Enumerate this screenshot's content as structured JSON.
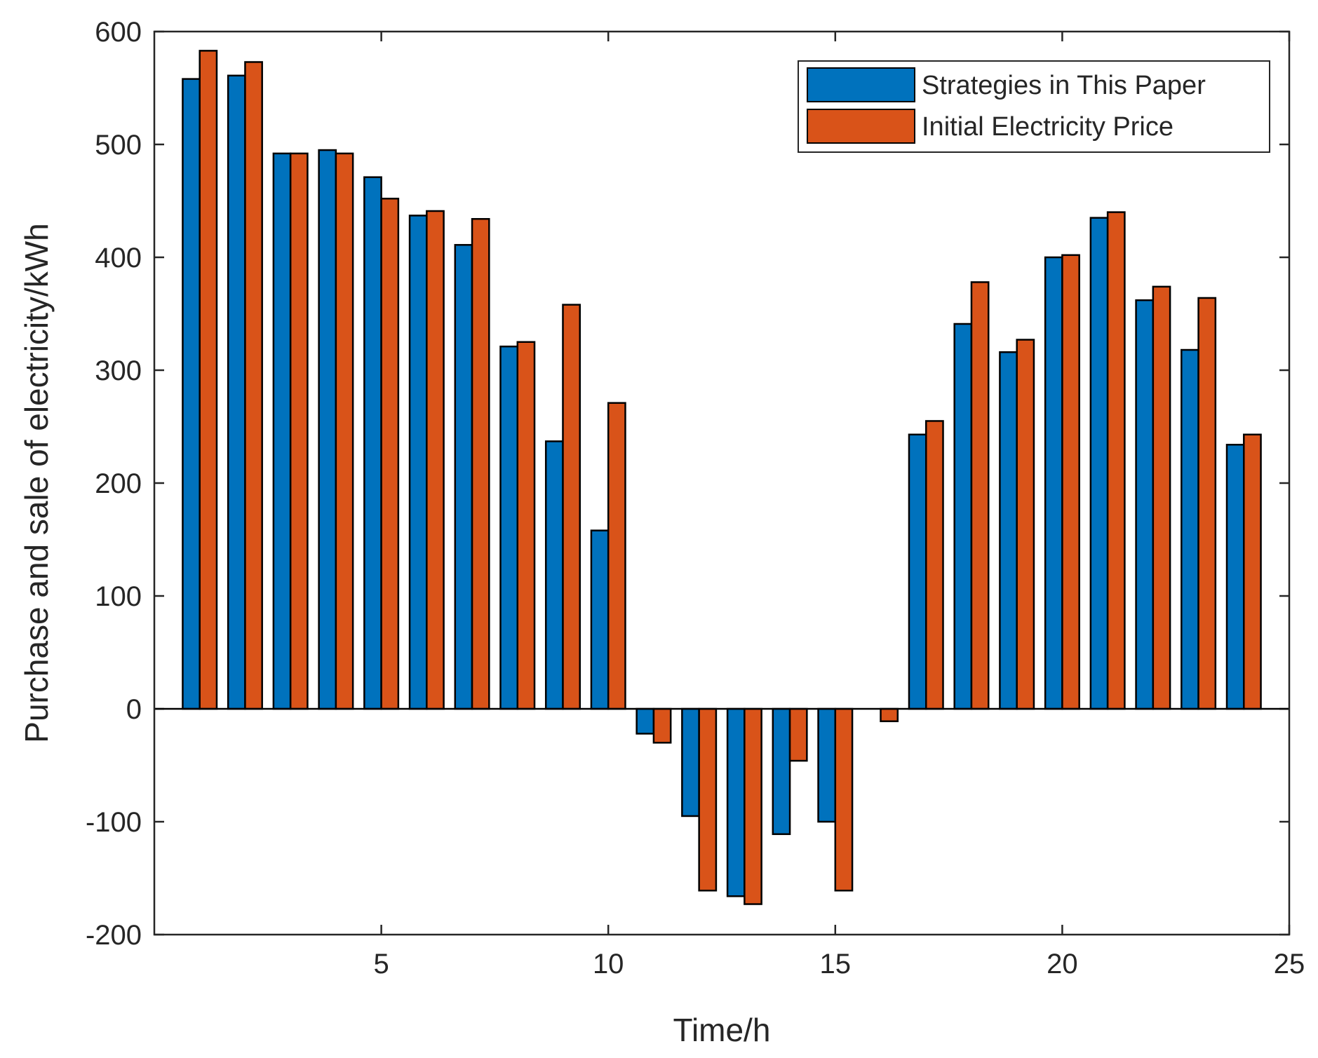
{
  "chart_data": {
    "type": "bar",
    "title": "",
    "xlabel": "Time/h",
    "ylabel": "Purchase and sale of electricity/kWh",
    "xlim": [
      0,
      25
    ],
    "ylim": [
      -200,
      600
    ],
    "xticks": [
      5,
      10,
      15,
      20,
      25
    ],
    "yticks": [
      -200,
      -100,
      0,
      100,
      200,
      300,
      400,
      500,
      600
    ],
    "grid": false,
    "legend_position": "top-right",
    "categories": [
      1,
      2,
      3,
      4,
      5,
      6,
      7,
      8,
      9,
      10,
      11,
      12,
      13,
      14,
      15,
      16,
      17,
      18,
      19,
      20,
      21,
      22,
      23,
      24
    ],
    "series": [
      {
        "name": "Strategies in This Paper",
        "color": "#0072BD",
        "values": [
          558,
          561,
          492,
          495,
          471,
          437,
          411,
          321,
          237,
          158,
          -22,
          -95,
          -166,
          -111,
          -100,
          0,
          243,
          341,
          316,
          400,
          435,
          362,
          318,
          234
        ]
      },
      {
        "name": "Initial Electricity Price",
        "color": "#D95319",
        "values": [
          583,
          573,
          492,
          492,
          452,
          441,
          434,
          325,
          358,
          271,
          -30,
          -161,
          -173,
          -46,
          -161,
          -11,
          255,
          378,
          327,
          402,
          440,
          374,
          364,
          243
        ]
      }
    ]
  }
}
